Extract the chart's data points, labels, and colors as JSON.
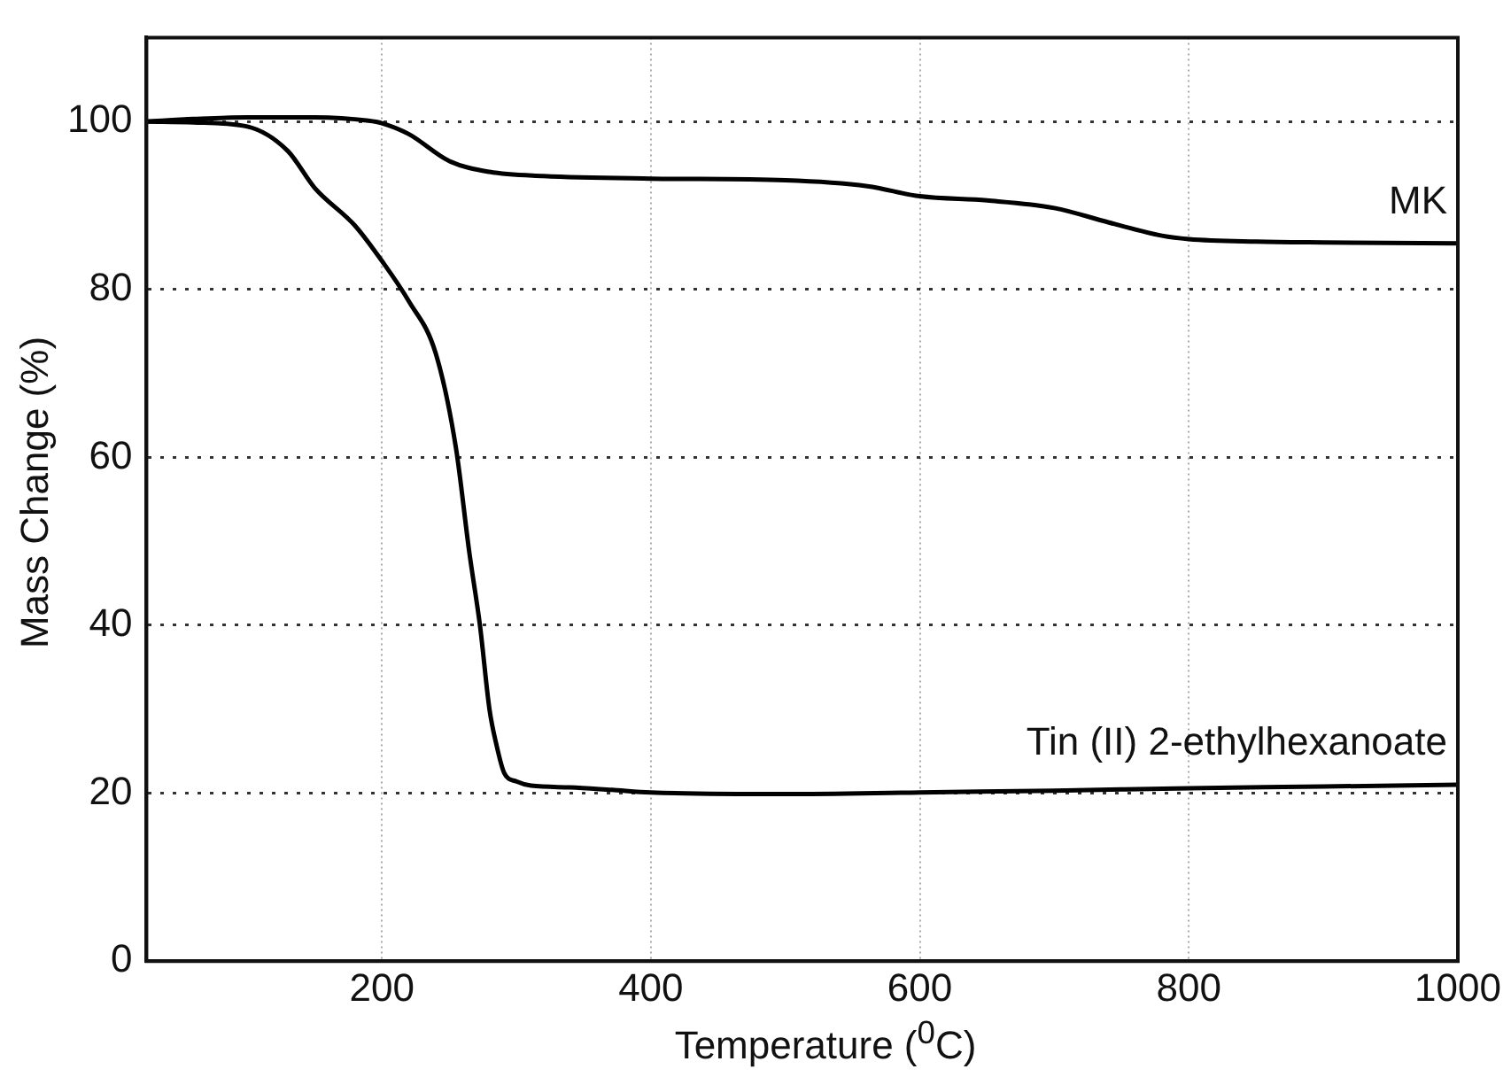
{
  "chart_data": {
    "type": "line",
    "xlabel": "Temperature ($^{0}$C)",
    "ylabel": "Mass Change (%)",
    "xlim": [
      25,
      1000
    ],
    "ylim": [
      0,
      110
    ],
    "xticks": [
      200,
      400,
      600,
      800,
      1000
    ],
    "yticks": [
      0,
      20,
      40,
      60,
      80,
      100
    ],
    "grid": true,
    "legend": false,
    "marker": "none",
    "line_style": "solid",
    "series": [
      {
        "name": "MK",
        "color": "#000000",
        "x": [
          25,
          60,
          100,
          150,
          190,
          200,
          220,
          250,
          280,
          320,
          400,
          500,
          561,
          600,
          650,
          700,
          740,
          780,
          800,
          850,
          900,
          1000
        ],
        "values": [
          100,
          100.3,
          100.5,
          100.5,
          100.1,
          99.8,
          98.5,
          95.3,
          94,
          93.5,
          93.2,
          93,
          92.3,
          91.1,
          90.6,
          89.7,
          88,
          86.4,
          86,
          85.7,
          85.6,
          85.5
        ]
      },
      {
        "name": "Tin (II) 2-ethylhexanoate",
        "color": "#000000",
        "x": [
          25,
          60,
          100,
          130,
          150,
          180,
          200,
          220,
          240,
          255,
          265,
          273,
          280,
          285,
          291,
          300,
          311,
          340,
          371,
          400,
          500,
          600,
          700,
          800,
          900,
          1000
        ],
        "values": [
          100,
          99.9,
          99.4,
          96.5,
          92.1,
          87.6,
          83.4,
          78.6,
          72.4,
          61.2,
          48.7,
          39.9,
          30,
          25.9,
          22.4,
          21.4,
          20.9,
          20.7,
          20.4,
          20.1,
          19.9,
          20.1,
          20.3,
          20.6,
          20.8,
          21
        ]
      }
    ]
  }
}
